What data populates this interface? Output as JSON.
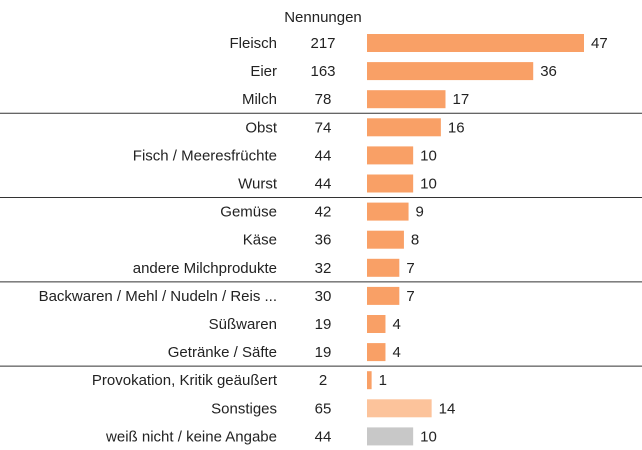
{
  "chart_data": {
    "type": "bar",
    "orientation": "horizontal",
    "count_header": "Nennungen",
    "categories": [
      "Fleisch",
      "Eier",
      "Milch",
      "Obst",
      "Fisch / Meeresfrüchte",
      "Wurst",
      "Gemüse",
      "Käse",
      "andere Milchprodukte",
      "Backwaren / Mehl / Nudeln / Reis ...",
      "Süßwaren",
      "Getränke / Säfte",
      "Provokation, Kritik geäußert",
      "Sonstiges",
      "weiß nicht / keine Angabe"
    ],
    "counts": [
      217,
      163,
      78,
      74,
      44,
      44,
      42,
      36,
      32,
      30,
      19,
      19,
      2,
      65,
      44
    ],
    "values": [
      47,
      36,
      17,
      16,
      10,
      10,
      9,
      8,
      7,
      7,
      4,
      4,
      1,
      14,
      10
    ],
    "bar_colors": [
      "#f9a066",
      "#f9a066",
      "#f9a066",
      "#f9a066",
      "#f9a066",
      "#f9a066",
      "#f9a066",
      "#f9a066",
      "#f9a066",
      "#f9a066",
      "#f9a066",
      "#f9a066",
      "#f9a066",
      "#fcc39b",
      "#c8c8c8"
    ],
    "separators_after": [
      2,
      5,
      8,
      11
    ],
    "value_max": 47
  }
}
